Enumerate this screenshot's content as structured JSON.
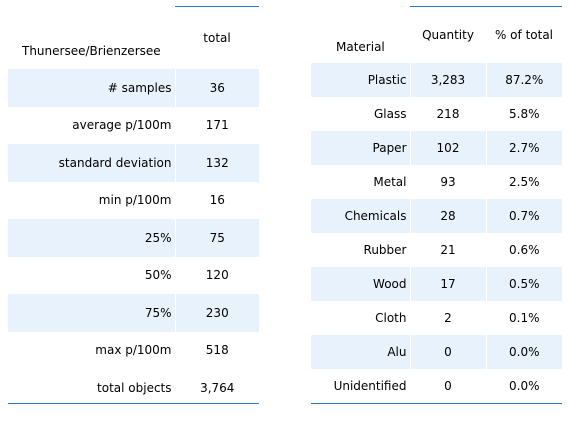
{
  "summary_table": {
    "header_label": "Thunersee/Brienzersee",
    "header_value": "total",
    "rows": [
      {
        "label": "# samples",
        "value": "36"
      },
      {
        "label": "average p/100m",
        "value": "171"
      },
      {
        "label": "standard deviation",
        "value": "132"
      },
      {
        "label": "min p/100m",
        "value": "16"
      },
      {
        "label": "25%",
        "value": "75"
      },
      {
        "label": "50%",
        "value": "120"
      },
      {
        "label": "75%",
        "value": "230"
      },
      {
        "label": "max p/100m",
        "value": "518"
      },
      {
        "label": "total objects",
        "value": "3,764"
      }
    ]
  },
  "material_table": {
    "header_material": "Material",
    "header_quantity": "Quantity",
    "header_percent": "% of total",
    "rows": [
      {
        "material": "Plastic",
        "quantity": "3,283",
        "percent": "87.2%"
      },
      {
        "material": "Glass",
        "quantity": "218",
        "percent": "5.8%"
      },
      {
        "material": "Paper",
        "quantity": "102",
        "percent": "2.7%"
      },
      {
        "material": "Metal",
        "quantity": "93",
        "percent": "2.5%"
      },
      {
        "material": "Chemicals",
        "quantity": "28",
        "percent": "0.7%"
      },
      {
        "material": "Rubber",
        "quantity": "21",
        "percent": "0.6%"
      },
      {
        "material": "Wood",
        "quantity": "17",
        "percent": "0.5%"
      },
      {
        "material": "Cloth",
        "quantity": "2",
        "percent": "0.1%"
      },
      {
        "material": "Alu",
        "quantity": "0",
        "percent": "0.0%"
      },
      {
        "material": "Unidentified",
        "quantity": "0",
        "percent": "0.0%"
      }
    ]
  },
  "colors": {
    "row_shade": "#e8f2fd",
    "rule_line": "#2b7bb9"
  }
}
